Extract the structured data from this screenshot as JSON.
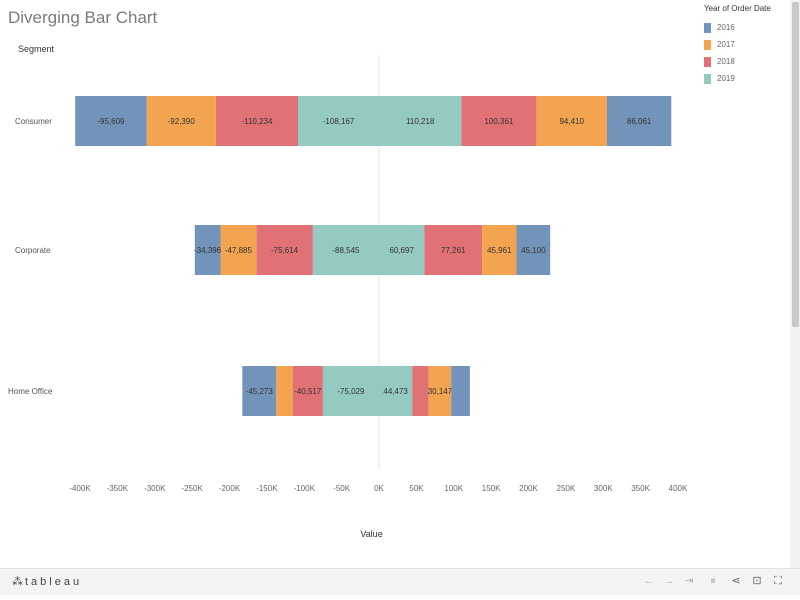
{
  "title": "Diverging Bar Chart",
  "segment_header": "Segment",
  "legend": {
    "title": "Year of Order Date",
    "items": [
      {
        "label": "2016",
        "color": "#7294bb"
      },
      {
        "label": "2017",
        "color": "#f3a450"
      },
      {
        "label": "2018",
        "color": "#e07276"
      },
      {
        "label": "2019",
        "color": "#95cac2"
      }
    ]
  },
  "footer": {
    "logo_text": "tableau",
    "icons": [
      "undo-icon",
      "redo-icon",
      "revert-icon",
      "pause-icon",
      "share-icon",
      "download-icon",
      "fullscreen-icon"
    ]
  },
  "chart_data": {
    "type": "bar",
    "orientation": "horizontal",
    "diverging": true,
    "categories": [
      "Consumer",
      "Corporate",
      "Home Office"
    ],
    "series": [
      {
        "name": "2016",
        "color": "#7294bb",
        "negative_values": [
          -95609,
          -34396,
          -45273
        ],
        "positive_values": [
          86061,
          45100,
          25000
        ],
        "labels_neg": [
          "-95,609",
          "-34,396",
          "-45,273"
        ],
        "labels_pos": [
          "86,061",
          "45,100",
          ""
        ]
      },
      {
        "name": "2017",
        "color": "#f3a450",
        "negative_values": [
          -92390,
          -47885,
          -22000
        ],
        "positive_values": [
          94410,
          45961,
          30147
        ],
        "labels_neg": [
          "-92,390",
          "-47,885",
          ""
        ],
        "labels_pos": [
          "94,410",
          "45,961",
          "30,147"
        ]
      },
      {
        "name": "2018",
        "color": "#e07276",
        "negative_values": [
          -110234,
          -75614,
          -40517
        ],
        "positive_values": [
          100361,
          77261,
          22000
        ],
        "labels_neg": [
          "-110,234",
          "-75,614",
          "-40,517"
        ],
        "labels_pos": [
          "100,361",
          "77,261",
          ""
        ]
      },
      {
        "name": "2019",
        "color": "#95cac2",
        "negative_values": [
          -108167,
          -88545,
          -75029
        ],
        "positive_values": [
          110218,
          60697,
          44473
        ],
        "labels_neg": [
          "-108,167",
          "-88,545",
          "-75,029"
        ],
        "labels_pos": [
          "110,218",
          "60,697",
          "44,473"
        ]
      }
    ],
    "negative_order": [
      "2019",
      "2018",
      "2017",
      "2016"
    ],
    "positive_order": [
      "2019",
      "2018",
      "2017",
      "2016"
    ],
    "xlabel": "Value",
    "ylabel": "Segment",
    "xlim": [
      -400000,
      400000
    ],
    "xticks": [
      -400000,
      -350000,
      -300000,
      -250000,
      -200000,
      -150000,
      -100000,
      -50000,
      0,
      50000,
      100000,
      150000,
      200000,
      250000,
      300000,
      350000,
      400000
    ],
    "xtick_labels": [
      "-400K",
      "-350K",
      "-300K",
      "-250K",
      "-200K",
      "-150K",
      "-100K",
      "-50K",
      "0K",
      "50K",
      "100K",
      "150K",
      "200K",
      "250K",
      "300K",
      "350K",
      "400K"
    ],
    "grid": false,
    "zero_line": true,
    "legend_position": "top-right"
  }
}
